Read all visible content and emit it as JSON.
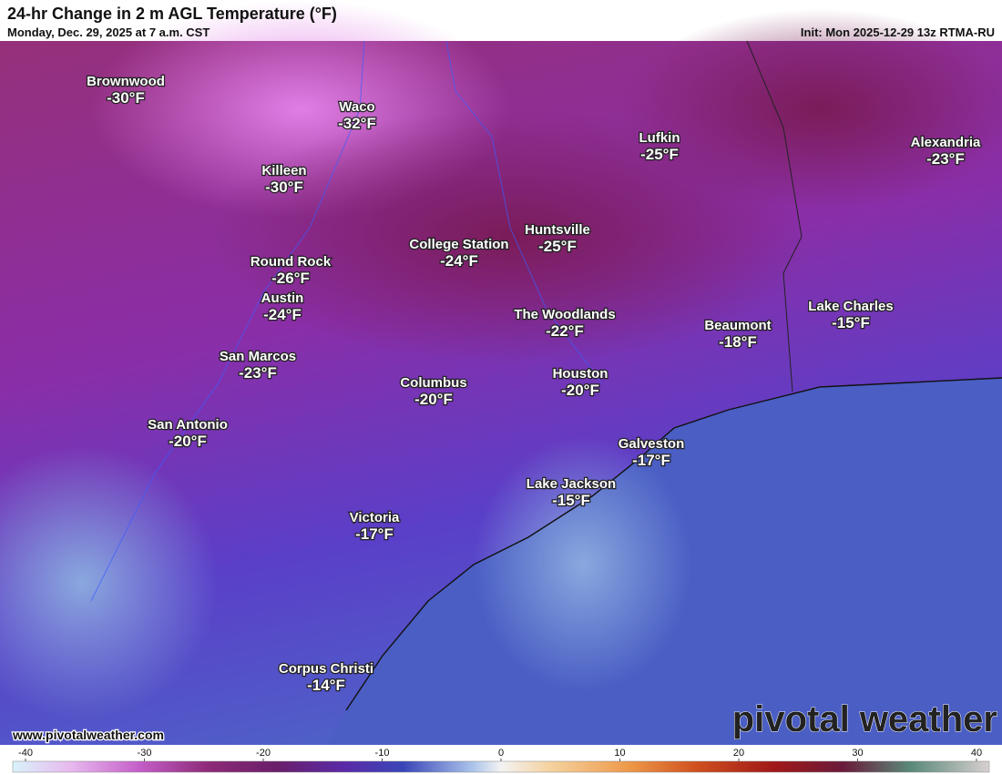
{
  "header": {
    "title": "24-hr Change in 2 m AGL Temperature (°F)",
    "subtitle": "Monday, Dec. 29, 2025 at 7 a.m. CST",
    "init": "Init: Mon 2025-12-29 13z RTMA-RU"
  },
  "cities": [
    {
      "name": "Brownwood",
      "label": "-30°F"
    },
    {
      "name": "Waco",
      "label": "-32°F"
    },
    {
      "name": "Killeen",
      "label": "-30°F"
    },
    {
      "name": "Round Rock",
      "label": "-26°F"
    },
    {
      "name": "Austin",
      "label": "-24°F"
    },
    {
      "name": "College Station",
      "label": "-24°F"
    },
    {
      "name": "Huntsville",
      "label": "-25°F"
    },
    {
      "name": "Lufkin",
      "label": "-25°F"
    },
    {
      "name": "Alexandria",
      "label": "-23°F"
    },
    {
      "name": "The Woodlands",
      "label": "-22°F"
    },
    {
      "name": "Beaumont",
      "label": "-18°F"
    },
    {
      "name": "Lake Charles",
      "label": "-15°F"
    },
    {
      "name": "San Marcos",
      "label": "-23°F"
    },
    {
      "name": "Columbus",
      "label": "-20°F"
    },
    {
      "name": "Houston",
      "label": "-20°F"
    },
    {
      "name": "San Antonio",
      "label": "-20°F"
    },
    {
      "name": "Galveston",
      "label": "-17°F"
    },
    {
      "name": "Lake Jackson",
      "label": "-15°F"
    },
    {
      "name": "Victoria",
      "label": "-17°F"
    },
    {
      "name": "Corpus Christi",
      "label": "-14°F"
    }
  ],
  "colorbar": {
    "range": [
      -40,
      40
    ],
    "ticks": [
      -40,
      -30,
      -20,
      -10,
      0,
      10,
      20,
      30,
      40
    ]
  },
  "footer": {
    "website": "www.pivotalweather.com",
    "logo": "pivotal weather"
  }
}
